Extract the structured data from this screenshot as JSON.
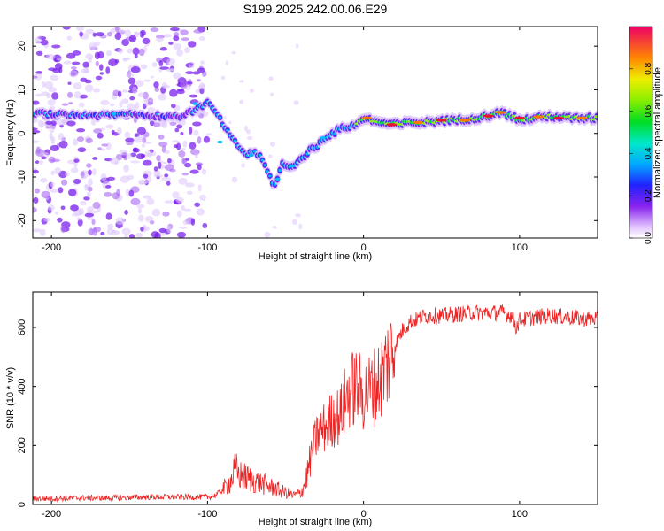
{
  "title": "S199.2025.242.00.06.E29",
  "chart_data": [
    {
      "type": "heatmap",
      "title": "",
      "xlabel": "Height of straight line (km)",
      "ylabel": "Frequency (Hz)",
      "xlim": [
        -212,
        150
      ],
      "ylim": [
        -24,
        24.5
      ],
      "xticks": [
        -200,
        -100,
        0,
        100
      ],
      "yticks": [
        -20,
        -10,
        0,
        10,
        20
      ],
      "colorbar": {
        "label": "Normalized spectral amplitude",
        "range": [
          0,
          1
        ],
        "ticks": [
          "0.0",
          "0.2",
          "0.4",
          "0.6",
          "0.8"
        ]
      },
      "trace": {
        "name": "dominant frequency ridge",
        "x": [
          -212,
          -190,
          -170,
          -150,
          -130,
          -115,
          -105,
          -100,
          -95,
          -90,
          -85,
          -80,
          -75,
          -70,
          -65,
          -60,
          -57,
          -55,
          -52,
          -48,
          -44,
          -40,
          -35,
          -30,
          -25,
          -20,
          -15,
          -10,
          -5,
          0,
          5,
          10,
          20,
          30,
          40,
          50,
          60,
          70,
          80,
          85,
          90,
          95,
          100,
          110,
          120,
          130,
          140,
          150
        ],
        "y": [
          4.5,
          4.5,
          4.0,
          4.5,
          4.0,
          4.0,
          6.0,
          7.0,
          5.0,
          2.0,
          -1.0,
          -3.0,
          -5.0,
          -4.0,
          -6.0,
          -10.0,
          -12.0,
          -10.0,
          -7.0,
          -8.0,
          -7.0,
          -6.0,
          -4.0,
          -3.0,
          -1.0,
          0.0,
          1.0,
          1.5,
          2.0,
          3.5,
          3.0,
          2.5,
          2.0,
          2.5,
          2.5,
          3.0,
          3.0,
          3.5,
          4.0,
          5.0,
          4.5,
          4.0,
          3.0,
          3.5,
          4.0,
          3.5,
          3.5,
          3.5
        ]
      }
    },
    {
      "type": "line",
      "title": "",
      "xlabel": "Height of straight line (km)",
      "ylabel": "SNR (10 * v/v)",
      "xlim": [
        -212,
        150
      ],
      "ylim": [
        0,
        720
      ],
      "xticks": [
        -200,
        -100,
        0,
        100
      ],
      "yticks": [
        0,
        200,
        400,
        600
      ],
      "series": [
        {
          "name": "SNR",
          "color": "#ee2222",
          "x": [
            -212,
            -200,
            -180,
            -160,
            -140,
            -120,
            -100,
            -95,
            -90,
            -85,
            -82,
            -80,
            -75,
            -70,
            -65,
            -60,
            -55,
            -50,
            -45,
            -40,
            -37,
            -35,
            -32,
            -30,
            -28,
            -25,
            -20,
            -15,
            -10,
            -5,
            0,
            5,
            10,
            15,
            20,
            25,
            30,
            40,
            50,
            60,
            70,
            80,
            90,
            95,
            98,
            100,
            110,
            120,
            130,
            140,
            150
          ],
          "y": [
            20,
            20,
            22,
            22,
            25,
            25,
            25,
            30,
            50,
            80,
            120,
            100,
            90,
            80,
            70,
            60,
            50,
            40,
            30,
            40,
            80,
            130,
            200,
            230,
            250,
            260,
            290,
            300,
            380,
            400,
            370,
            390,
            420,
            480,
            540,
            590,
            620,
            640,
            640,
            645,
            650,
            650,
            650,
            640,
            600,
            625,
            635,
            640,
            635,
            630,
            630
          ]
        }
      ]
    }
  ]
}
